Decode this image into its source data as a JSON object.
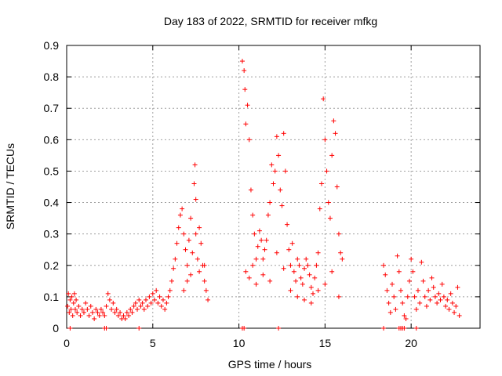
{
  "chart_data": {
    "type": "scatter",
    "title": "Day 183 of 2022, SRMTID for receiver mfkg",
    "xlabel": "GPS time / hours",
    "ylabel": "SRMTID / TECUs",
    "xlim": [
      0,
      24
    ],
    "ylim": [
      0,
      0.9
    ],
    "xticks": [
      0,
      5,
      10,
      15,
      20
    ],
    "xtick_labels": [
      "0",
      "5",
      "10",
      "15",
      "20"
    ],
    "yticks": [
      0,
      0.1,
      0.2,
      0.3,
      0.4,
      0.5,
      0.6,
      0.7,
      0.8,
      0.9
    ],
    "ytick_labels": [
      "0",
      "0.1",
      "0.2",
      "0.3",
      "0.4",
      "0.5",
      "0.6",
      "0.7",
      "0.8",
      "0.9"
    ],
    "grid": true,
    "marker": "+",
    "color": "#ff0000",
    "series": [
      {
        "name": "SRMTID",
        "points": [
          [
            0.05,
            0.07
          ],
          [
            0.1,
            0.11
          ],
          [
            0.15,
            0.05
          ],
          [
            0.2,
            0.09
          ],
          [
            0.25,
            0.06
          ],
          [
            0.3,
            0.1
          ],
          [
            0.35,
            0.04
          ],
          [
            0.4,
            0.08
          ],
          [
            0.45,
            0.11
          ],
          [
            0.5,
            0.06
          ],
          [
            0.55,
            0.09
          ],
          [
            0.6,
            0.05
          ],
          [
            0.7,
            0.07
          ],
          [
            0.8,
            0.04
          ],
          [
            0.9,
            0.06
          ],
          [
            1.0,
            0.05
          ],
          [
            1.1,
            0.08
          ],
          [
            1.2,
            0.06
          ],
          [
            1.3,
            0.04
          ],
          [
            1.4,
            0.07
          ],
          [
            1.5,
            0.05
          ],
          [
            1.6,
            0.03
          ],
          [
            1.7,
            0.06
          ],
          [
            1.8,
            0.05
          ],
          [
            1.9,
            0.04
          ],
          [
            2.0,
            0.06
          ],
          [
            2.1,
            0.05
          ],
          [
            2.2,
            0.04
          ],
          [
            2.3,
            0.07
          ],
          [
            2.4,
            0.11
          ],
          [
            2.5,
            0.09
          ],
          [
            2.6,
            0.06
          ],
          [
            2.7,
            0.08
          ],
          [
            2.8,
            0.05
          ],
          [
            2.9,
            0.06
          ],
          [
            3.0,
            0.04
          ],
          [
            3.1,
            0.05
          ],
          [
            3.2,
            0.03
          ],
          [
            3.3,
            0.04
          ],
          [
            3.4,
            0.03
          ],
          [
            3.5,
            0.05
          ],
          [
            3.6,
            0.04
          ],
          [
            3.7,
            0.06
          ],
          [
            3.8,
            0.05
          ],
          [
            3.9,
            0.07
          ],
          [
            4.0,
            0.08
          ],
          [
            4.1,
            0.06
          ],
          [
            4.2,
            0.09
          ],
          [
            4.3,
            0.07
          ],
          [
            4.4,
            0.08
          ],
          [
            4.5,
            0.06
          ],
          [
            4.6,
            0.09
          ],
          [
            4.7,
            0.07
          ],
          [
            4.8,
            0.1
          ],
          [
            4.9,
            0.08
          ],
          [
            5.0,
            0.11
          ],
          [
            5.1,
            0.09
          ],
          [
            5.2,
            0.12
          ],
          [
            5.3,
            0.08
          ],
          [
            5.4,
            0.1
          ],
          [
            5.5,
            0.07
          ],
          [
            5.6,
            0.09
          ],
          [
            5.7,
            0.06
          ],
          [
            5.8,
            0.08
          ],
          [
            5.9,
            0.1
          ],
          [
            6.0,
            0.12
          ],
          [
            6.1,
            0.15
          ],
          [
            6.2,
            0.19
          ],
          [
            6.3,
            0.22
          ],
          [
            6.4,
            0.27
          ],
          [
            6.5,
            0.32
          ],
          [
            6.6,
            0.36
          ],
          [
            6.7,
            0.38
          ],
          [
            6.8,
            0.3
          ],
          [
            6.9,
            0.25
          ],
          [
            7.0,
            0.2
          ],
          [
            7.1,
            0.28
          ],
          [
            7.2,
            0.35
          ],
          [
            7.3,
            0.24
          ],
          [
            7.4,
            0.46
          ],
          [
            7.45,
            0.52
          ],
          [
            7.5,
            0.3
          ],
          [
            7.6,
            0.22
          ],
          [
            7.7,
            0.18
          ],
          [
            7.8,
            0.27
          ],
          [
            7.9,
            0.2
          ],
          [
            8.0,
            0.15
          ],
          [
            8.1,
            0.12
          ],
          [
            8.2,
            0.09
          ],
          [
            6.8,
            0.12
          ],
          [
            7.0,
            0.15
          ],
          [
            7.2,
            0.17
          ],
          [
            7.5,
            0.41
          ],
          [
            7.7,
            0.32
          ],
          [
            8.0,
            0.2
          ],
          [
            10.2,
            0.85
          ],
          [
            10.3,
            0.82
          ],
          [
            10.35,
            0.76
          ],
          [
            10.4,
            0.65
          ],
          [
            10.5,
            0.71
          ],
          [
            10.6,
            0.6
          ],
          [
            10.7,
            0.44
          ],
          [
            10.8,
            0.36
          ],
          [
            10.9,
            0.3
          ],
          [
            11.0,
            0.22
          ],
          [
            11.1,
            0.26
          ],
          [
            11.2,
            0.31
          ],
          [
            11.3,
            0.28
          ],
          [
            11.4,
            0.22
          ],
          [
            11.5,
            0.25
          ],
          [
            11.6,
            0.28
          ],
          [
            11.7,
            0.36
          ],
          [
            11.8,
            0.4
          ],
          [
            11.9,
            0.52
          ],
          [
            12.0,
            0.46
          ],
          [
            12.1,
            0.5
          ],
          [
            12.2,
            0.61
          ],
          [
            12.3,
            0.55
          ],
          [
            12.4,
            0.44
          ],
          [
            12.5,
            0.39
          ],
          [
            12.6,
            0.62
          ],
          [
            12.7,
            0.5
          ],
          [
            12.8,
            0.33
          ],
          [
            12.9,
            0.25
          ],
          [
            13.0,
            0.2
          ],
          [
            13.1,
            0.27
          ],
          [
            13.2,
            0.18
          ],
          [
            13.3,
            0.15
          ],
          [
            13.4,
            0.22
          ],
          [
            13.5,
            0.2
          ],
          [
            13.6,
            0.16
          ],
          [
            13.7,
            0.14
          ],
          [
            13.8,
            0.19
          ],
          [
            13.9,
            0.22
          ],
          [
            14.0,
            0.2
          ],
          [
            14.1,
            0.17
          ],
          [
            14.2,
            0.13
          ],
          [
            14.3,
            0.11
          ],
          [
            14.4,
            0.16
          ],
          [
            14.5,
            0.2
          ],
          [
            14.6,
            0.24
          ],
          [
            14.7,
            0.38
          ],
          [
            14.8,
            0.46
          ],
          [
            14.9,
            0.73
          ],
          [
            15.0,
            0.6
          ],
          [
            15.1,
            0.5
          ],
          [
            15.2,
            0.4
          ],
          [
            15.3,
            0.35
          ],
          [
            15.4,
            0.55
          ],
          [
            15.5,
            0.66
          ],
          [
            15.6,
            0.62
          ],
          [
            15.7,
            0.45
          ],
          [
            15.8,
            0.3
          ],
          [
            15.9,
            0.24
          ],
          [
            16.0,
            0.22
          ],
          [
            10.4,
            0.18
          ],
          [
            10.6,
            0.16
          ],
          [
            10.8,
            0.2
          ],
          [
            11.0,
            0.14
          ],
          [
            11.4,
            0.17
          ],
          [
            11.8,
            0.15
          ],
          [
            12.2,
            0.24
          ],
          [
            12.6,
            0.19
          ],
          [
            13.0,
            0.12
          ],
          [
            13.4,
            0.1
          ],
          [
            13.8,
            0.09
          ],
          [
            14.2,
            0.08
          ],
          [
            14.6,
            0.12
          ],
          [
            15.0,
            0.14
          ],
          [
            15.4,
            0.18
          ],
          [
            15.8,
            0.1
          ],
          [
            18.4,
            0.2
          ],
          [
            18.5,
            0.17
          ],
          [
            18.6,
            0.12
          ],
          [
            18.7,
            0.08
          ],
          [
            18.8,
            0.05
          ],
          [
            18.9,
            0.14
          ],
          [
            19.0,
            0.1
          ],
          [
            19.1,
            0.06
          ],
          [
            19.2,
            0.23
          ],
          [
            19.3,
            0.18
          ],
          [
            19.4,
            0.12
          ],
          [
            19.5,
            0.08
          ],
          [
            19.6,
            0.04
          ],
          [
            19.7,
            0.03
          ],
          [
            19.8,
            0.1
          ],
          [
            19.9,
            0.15
          ],
          [
            20.0,
            0.22
          ],
          [
            20.1,
            0.18
          ],
          [
            20.2,
            0.1
          ],
          [
            20.3,
            0.06
          ],
          [
            20.4,
            0.12
          ],
          [
            20.5,
            0.08
          ],
          [
            20.6,
            0.21
          ],
          [
            20.7,
            0.15
          ],
          [
            20.8,
            0.1
          ],
          [
            20.9,
            0.07
          ],
          [
            21.0,
            0.12
          ],
          [
            21.1,
            0.09
          ],
          [
            21.2,
            0.16
          ],
          [
            21.3,
            0.13
          ],
          [
            21.4,
            0.1
          ],
          [
            21.5,
            0.08
          ],
          [
            21.6,
            0.11
          ],
          [
            21.7,
            0.09
          ],
          [
            21.8,
            0.14
          ],
          [
            21.9,
            0.1
          ],
          [
            22.0,
            0.07
          ],
          [
            22.1,
            0.09
          ],
          [
            22.2,
            0.06
          ],
          [
            22.3,
            0.11
          ],
          [
            22.4,
            0.08
          ],
          [
            22.5,
            0.05
          ],
          [
            22.6,
            0.07
          ],
          [
            22.7,
            0.13
          ],
          [
            22.8,
            0.04
          ],
          [
            0.2,
            0.0
          ],
          [
            2.2,
            0.0
          ],
          [
            2.3,
            0.0
          ],
          [
            4.2,
            0.0
          ],
          [
            10.2,
            0.0
          ],
          [
            10.3,
            0.0
          ],
          [
            12.3,
            0.0
          ],
          [
            18.4,
            0.0
          ],
          [
            19.3,
            0.0
          ],
          [
            19.4,
            0.0
          ],
          [
            19.5,
            0.0
          ],
          [
            19.6,
            0.0
          ],
          [
            20.3,
            0.0
          ]
        ]
      }
    ]
  }
}
